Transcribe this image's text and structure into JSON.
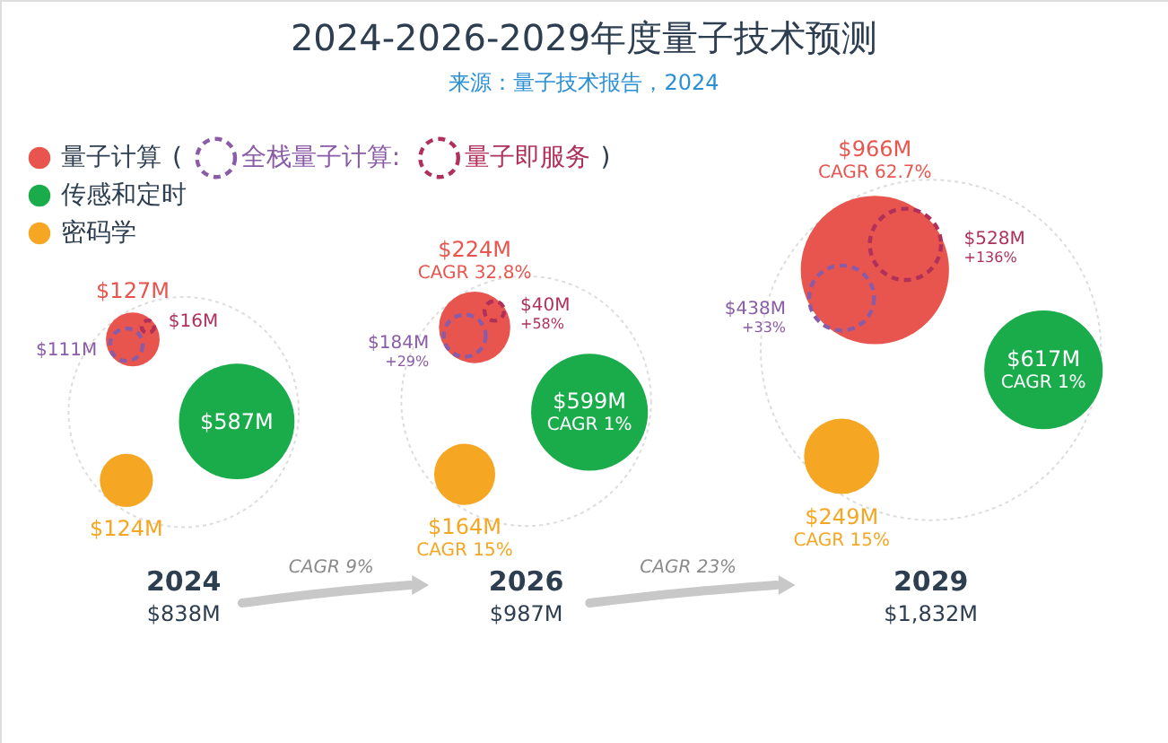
{
  "chart_data": {
    "type": "other",
    "title": "2024-2026-2029年度量子技术预测",
    "subtitle": "来源：量子技术报告，2024",
    "legend": "top left",
    "categories": [
      "2024",
      "2026",
      "2029"
    ],
    "totals": [
      "$838M",
      "$987M",
      "$1,832M"
    ],
    "series": [
      {
        "name": "量子计算",
        "color": "#e8554e",
        "values": [
          127,
          224,
          966
        ],
        "value_labels": [
          "$127M",
          "$224M",
          "$966M"
        ]
      },
      {
        "name": "传感和定时",
        "color": "#1aab4b",
        "values": [
          587,
          599,
          617
        ],
        "value_labels": [
          "$587M",
          "$599M",
          "$617M"
        ]
      },
      {
        "name": "密码学",
        "color": "#f5a623",
        "values": [
          124,
          164,
          249
        ],
        "value_labels": [
          "$124M",
          "$164M",
          "$249M"
        ]
      },
      {
        "name": "全栈量子计算:",
        "color": "#8a5ca8",
        "line_style": "dashed",
        "values": [
          111,
          184,
          438
        ],
        "value_labels": [
          "$111M",
          "$184M",
          "$438M"
        ]
      },
      {
        "name": "量子即服务",
        "color": "#b0305a",
        "line_style": "dashed",
        "values": [
          16,
          40,
          528
        ],
        "value_labels": [
          "$16M",
          "$40M",
          "$528M"
        ]
      }
    ],
    "annotations": [
      "CAGR 9%",
      "CAGR 23%",
      "(",
      ")",
      "CAGR 32.8%",
      "CAGR 62.7%",
      "CAGR 1%",
      "CAGR 1%",
      "CAGR 15%",
      "CAGR 15%",
      "+29%",
      "+33%",
      "+58%",
      "+136%"
    ]
  }
}
